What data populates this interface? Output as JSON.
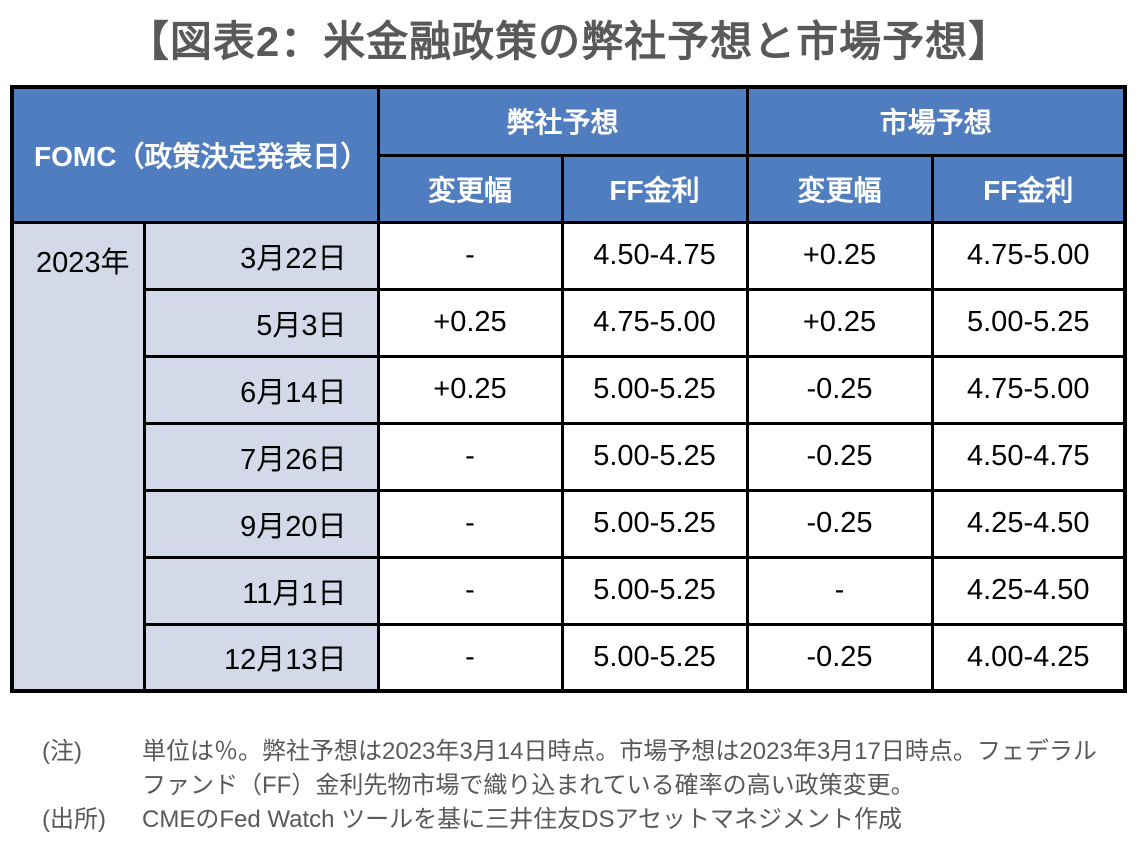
{
  "title": "【図表2：米金融政策の弊社予想と市場予想】",
  "table": {
    "header": {
      "fomc": "FOMC（政策決定発表日）",
      "our_forecast": "弊社予想",
      "market_forecast": "市場予想",
      "sub": [
        "変更幅",
        "FF金利",
        "変更幅",
        "FF金利"
      ]
    },
    "year": "2023年",
    "rows": [
      {
        "date": "3月22日",
        "our_change": "-",
        "our_ff": "4.50-4.75",
        "mkt_change": "+0.25",
        "mkt_ff": "4.75-5.00"
      },
      {
        "date": "5月3日",
        "our_change": "+0.25",
        "our_ff": "4.75-5.00",
        "mkt_change": "+0.25",
        "mkt_ff": "5.00-5.25"
      },
      {
        "date": "6月14日",
        "our_change": "+0.25",
        "our_ff": "5.00-5.25",
        "mkt_change": "-0.25",
        "mkt_ff": "4.75-5.00"
      },
      {
        "date": "7月26日",
        "our_change": "-",
        "our_ff": "5.00-5.25",
        "mkt_change": "-0.25",
        "mkt_ff": "4.50-4.75"
      },
      {
        "date": "9月20日",
        "our_change": "-",
        "our_ff": "5.00-5.25",
        "mkt_change": "-0.25",
        "mkt_ff": "4.25-4.50"
      },
      {
        "date": "11月1日",
        "our_change": "-",
        "our_ff": "5.00-5.25",
        "mkt_change": "-",
        "mkt_ff": "4.25-4.50"
      },
      {
        "date": "12月13日",
        "our_change": "-",
        "our_ff": "5.00-5.25",
        "mkt_change": "-0.25",
        "mkt_ff": "4.00-4.25"
      }
    ]
  },
  "notes": {
    "note_label": "(注)",
    "note_text": "単位は％。弊社予想は2023年3月14日時点。市場予想は2023年3月17日時点。フェデラルファンド（FF）金利先物市場で織り込まれている確率の高い政策変更。",
    "source_label": "(出所)",
    "source_text": "CMEのFed Watch ツールを基に三井住友DSアセットマネジメント作成"
  },
  "colors": {
    "header_bg": "#4f7dbf",
    "label_bg": "#d3d9e8",
    "border": "#000000",
    "title_text": "#595959",
    "note_text": "#595959"
  }
}
